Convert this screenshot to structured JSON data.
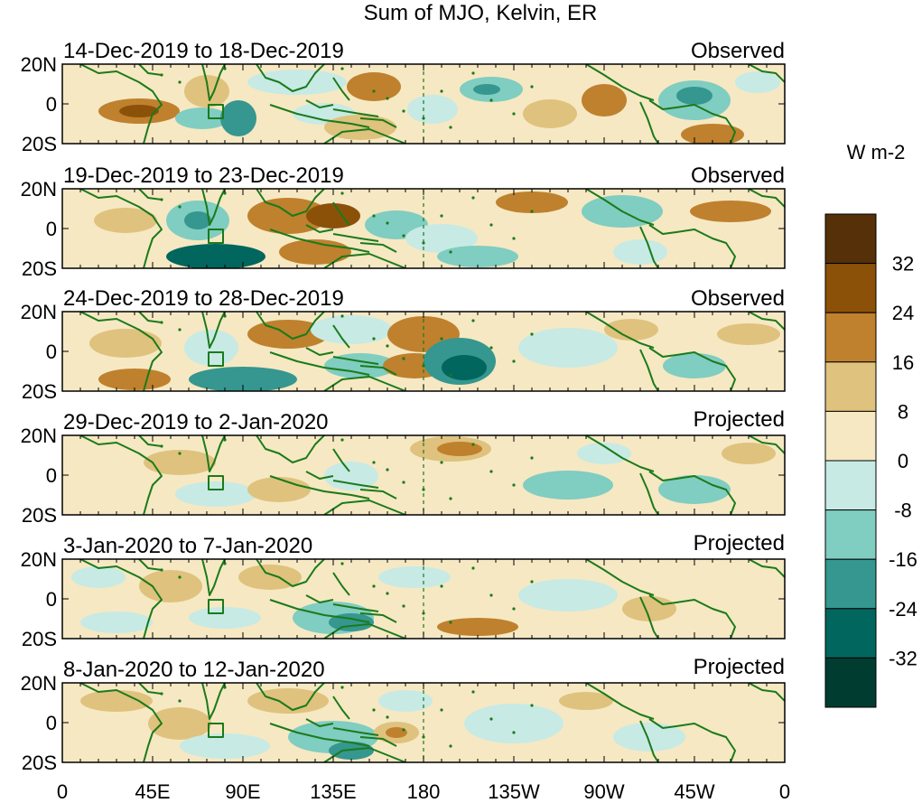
{
  "title": "Sum of MJO, Kelvin, ER",
  "panels": [
    {
      "date_range": "14-Dec-2019 to 18-Dec-2019",
      "status": "Observed"
    },
    {
      "date_range": "19-Dec-2019 to 23-Dec-2019",
      "status": "Observed"
    },
    {
      "date_range": "24-Dec-2019 to 28-Dec-2019",
      "status": "Observed"
    },
    {
      "date_range": "29-Dec-2019 to 2-Jan-2020",
      "status": "Projected"
    },
    {
      "date_range": "3-Jan-2020 to 7-Jan-2020",
      "status": "Projected"
    },
    {
      "date_range": "8-Jan-2020 to 12-Jan-2020",
      "status": "Projected"
    }
  ],
  "lat_labels": [
    "20N",
    "0",
    "20S"
  ],
  "lon_labels": [
    "0",
    "45E",
    "90E",
    "135E",
    "180",
    "135W",
    "90W",
    "45W",
    "0"
  ],
  "colorbar": {
    "units": "W m-2",
    "tick_labels": [
      "32",
      "24",
      "16",
      "8",
      "0",
      "-8",
      "-16",
      "-24",
      "-32"
    ],
    "colors": [
      "#553008",
      "#8c5109",
      "#bf812d",
      "#dfc27d",
      "#f6e8c3",
      "#c7eae5",
      "#80cdc1",
      "#35978f",
      "#01665e",
      "#003c30"
    ]
  },
  "map_style": {
    "coastline_color": "#1b7a1b",
    "dateline_style": "dashed"
  }
}
